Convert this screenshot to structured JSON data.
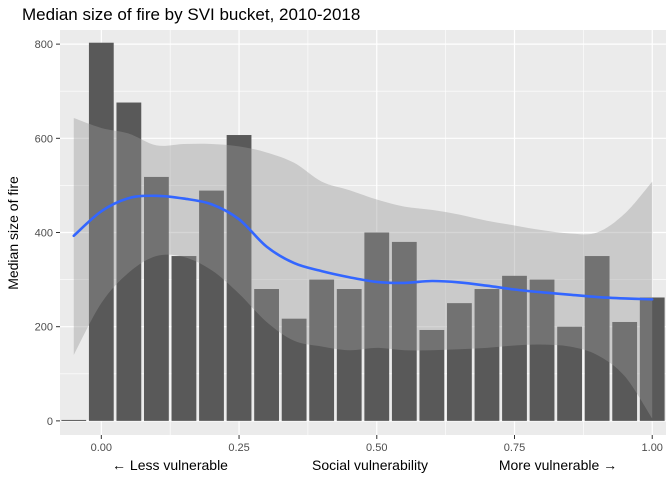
{
  "chart_data": {
    "type": "bar",
    "title": "Median size of fire by SVI bucket, 2010-2018",
    "ylabel": "Median size of fire",
    "xlabel": "Social vulnerability",
    "x_annotations": {
      "left": "← Less vulnerable",
      "right": "More vulnerable →"
    },
    "xlim": [
      -0.075,
      1.025
    ],
    "ylim": [
      -30,
      830
    ],
    "x_ticks": [
      0,
      0.25,
      0.5,
      0.75,
      1.0
    ],
    "x_tick_labels": [
      "0.00",
      "0.25",
      "0.50",
      "0.75",
      "1.00"
    ],
    "y_ticks": [
      0,
      200,
      400,
      600,
      800
    ],
    "y_tick_labels": [
      "0",
      "200",
      "400",
      "600",
      "800"
    ],
    "bar_width": 0.045,
    "x": [
      -0.05,
      0.0,
      0.05,
      0.1,
      0.15,
      0.2,
      0.25,
      0.3,
      0.35,
      0.4,
      0.45,
      0.5,
      0.55,
      0.6,
      0.65,
      0.7,
      0.75,
      0.8,
      0.85,
      0.9,
      0.95,
      1.0
    ],
    "values": [
      2,
      803,
      676,
      518,
      350,
      489,
      607,
      280,
      217,
      300,
      280,
      400,
      380,
      193,
      250,
      280,
      308,
      300,
      200,
      350,
      210,
      262
    ],
    "smooth": {
      "x": [
        -0.05,
        0.0,
        0.05,
        0.1,
        0.15,
        0.2,
        0.25,
        0.3,
        0.35,
        0.4,
        0.45,
        0.5,
        0.55,
        0.6,
        0.65,
        0.7,
        0.75,
        0.8,
        0.85,
        0.9,
        0.95,
        1.0
      ],
      "fit": [
        393,
        445,
        473,
        478,
        472,
        460,
        428,
        370,
        335,
        318,
        305,
        295,
        293,
        297,
        294,
        287,
        279,
        273,
        268,
        263,
        260,
        258
      ],
      "lower": [
        140,
        250,
        315,
        350,
        348,
        320,
        270,
        210,
        170,
        158,
        150,
        155,
        150,
        150,
        152,
        155,
        160,
        162,
        158,
        140,
        95,
        5
      ],
      "upper": [
        643,
        622,
        610,
        585,
        588,
        588,
        583,
        570,
        548,
        508,
        490,
        470,
        455,
        448,
        438,
        425,
        415,
        405,
        398,
        400,
        440,
        508
      ]
    },
    "colors": {
      "panel": "#ebebeb",
      "grid": "#ffffff",
      "bar": "#595959",
      "line": "#3366ff",
      "ribbon": "#999999"
    },
    "grid": true
  }
}
